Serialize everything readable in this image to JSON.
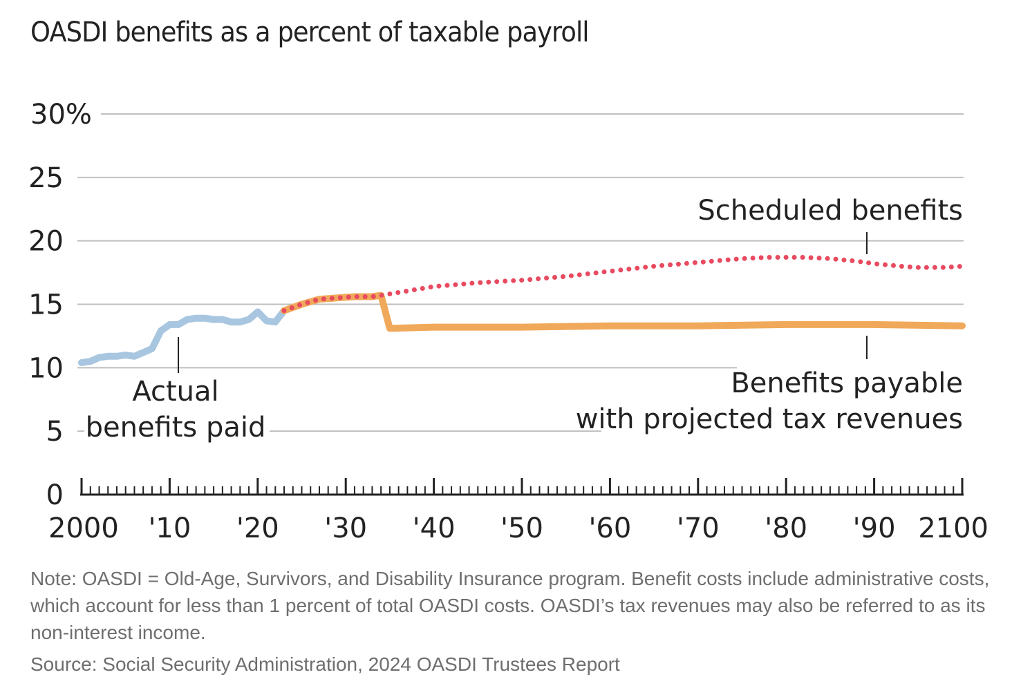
{
  "title": "OASDI benefits as a percent of taxable payroll",
  "note": "Note: OASDI = Old-Age, Survivors, and Disability Insurance program. Benefit costs include administrative costs, which account for less than 1 percent of total OASDI costs. OASDI’s tax revenues may also be referred to as its non-interest income.",
  "source": "Source: Social Security Administration, 2024 OASDI Trustees Report",
  "colors": {
    "actual": "#a8c6e0",
    "payable": "#f0a95a",
    "scheduled": "#e84a5f",
    "grid": "#bfbfbf",
    "axis": "#222222"
  },
  "chart_data": {
    "type": "line",
    "xlim": [
      2000,
      2100
    ],
    "ylim": [
      0,
      30
    ],
    "y_ticks": [
      0,
      5,
      10,
      15,
      20,
      25,
      30
    ],
    "y_tick_labels": [
      "0",
      "5",
      "10",
      "15",
      "20",
      "25",
      "30%"
    ],
    "x_ticks": [
      2000,
      2010,
      2020,
      2030,
      2040,
      2050,
      2060,
      2070,
      2080,
      2090,
      2100
    ],
    "x_tick_labels": [
      "2000",
      "'10",
      "'20",
      "'30",
      "'40",
      "'50",
      "'60",
      "'70",
      "'80",
      "'90",
      "2100"
    ],
    "grid": "horizontal",
    "annotations": {
      "actual": [
        "Actual",
        "benefits paid"
      ],
      "scheduled": [
        "Scheduled benefits"
      ],
      "payable": [
        "Benefits payable",
        "with projected tax revenues"
      ]
    },
    "series": [
      {
        "key": "actual",
        "style": "solid",
        "x": [
          2000,
          2001,
          2002,
          2003,
          2004,
          2005,
          2006,
          2007,
          2008,
          2009,
          2010,
          2011,
          2012,
          2013,
          2014,
          2015,
          2016,
          2017,
          2018,
          2019,
          2020,
          2021,
          2022,
          2023
        ],
        "values": [
          10.4,
          10.5,
          10.8,
          10.9,
          10.9,
          11.0,
          10.9,
          11.2,
          11.5,
          12.9,
          13.4,
          13.4,
          13.8,
          13.9,
          13.9,
          13.8,
          13.8,
          13.6,
          13.6,
          13.8,
          14.4,
          13.7,
          13.6,
          14.5
        ]
      },
      {
        "key": "payable",
        "style": "solid",
        "x": [
          2023,
          2025,
          2027,
          2029,
          2031,
          2033,
          2034,
          2035,
          2040,
          2050,
          2060,
          2070,
          2080,
          2090,
          2100
        ],
        "values": [
          14.5,
          15.0,
          15.4,
          15.5,
          15.6,
          15.6,
          15.7,
          13.1,
          13.2,
          13.2,
          13.3,
          13.3,
          13.4,
          13.4,
          13.3
        ]
      },
      {
        "key": "scheduled",
        "style": "dotted",
        "x": [
          2023,
          2025,
          2027,
          2029,
          2031,
          2033,
          2034,
          2040,
          2045,
          2050,
          2055,
          2060,
          2065,
          2070,
          2075,
          2078,
          2080,
          2082,
          2085,
          2088,
          2090,
          2093,
          2095,
          2098,
          2100
        ],
        "values": [
          14.5,
          15.0,
          15.4,
          15.5,
          15.6,
          15.6,
          15.7,
          16.4,
          16.7,
          16.9,
          17.2,
          17.6,
          18.0,
          18.3,
          18.6,
          18.7,
          18.7,
          18.7,
          18.6,
          18.4,
          18.2,
          18.0,
          17.9,
          17.9,
          18.0
        ]
      }
    ]
  }
}
